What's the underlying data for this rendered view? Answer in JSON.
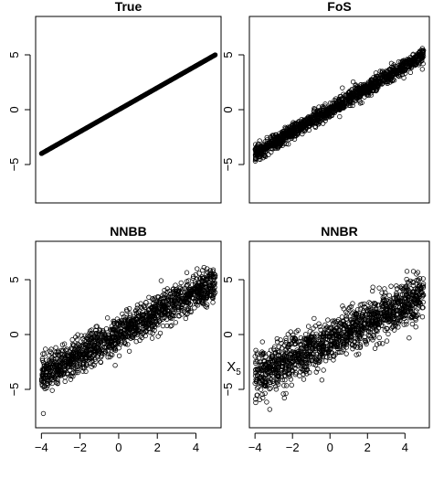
{
  "figure": {
    "shared_xlabel": "X",
    "shared_xlabel_subscript": "5"
  },
  "chart_data": [
    {
      "type": "scatter",
      "title": "True",
      "xlim": [
        -4.3,
        5.3
      ],
      "ylim": [
        -8.5,
        8.5
      ],
      "xticks": [
        -4,
        -2,
        0,
        2,
        4
      ],
      "yticks": [
        -5,
        0,
        5
      ],
      "show_xticks": false,
      "show_yticks": true,
      "marker": "filled-dense-line",
      "relation": {
        "slope": 1.0,
        "intercept": 0.0,
        "noise_sd": 0.0
      },
      "x_range": [
        -4,
        5
      ],
      "n_points": 900
    },
    {
      "type": "scatter",
      "title": "FoS",
      "xlim": [
        -4.3,
        5.3
      ],
      "ylim": [
        -8.5,
        8.5
      ],
      "xticks": [
        -4,
        -2,
        0,
        2,
        4
      ],
      "yticks": [
        -5,
        0,
        5
      ],
      "show_xticks": false,
      "show_yticks": true,
      "marker": "open-circle",
      "relation": {
        "slope": 1.0,
        "intercept": 0.0,
        "noise_sd": 0.35
      },
      "x_range": [
        -4,
        5
      ],
      "n_points": 1400
    },
    {
      "type": "scatter",
      "title": "NNBB",
      "xlim": [
        -4.3,
        5.3
      ],
      "ylim": [
        -8.5,
        8.5
      ],
      "xticks": [
        -4,
        -2,
        0,
        2,
        4
      ],
      "yticks": [
        -5,
        0,
        5
      ],
      "show_xticks": true,
      "show_yticks": true,
      "marker": "open-circle",
      "relation": {
        "slope": 0.95,
        "intercept": 0.05,
        "noise_sd": 0.8
      },
      "x_range": [
        -4,
        5
      ],
      "n_points": 1400,
      "outliers": [
        {
          "x": -3.9,
          "y": -7.2
        }
      ]
    },
    {
      "type": "scatter",
      "title": "NNBR",
      "xlim": [
        -4.3,
        5.3
      ],
      "ylim": [
        -8.5,
        8.5
      ],
      "xticks": [
        -4,
        -2,
        0,
        2,
        4
      ],
      "yticks": [
        -5,
        0,
        5
      ],
      "show_xticks": true,
      "show_yticks": true,
      "marker": "open-circle",
      "relation": {
        "slope": 0.8,
        "intercept": -0.5,
        "noise_sd": 1.05
      },
      "x_range": [
        -4,
        5
      ],
      "n_points": 1400
    }
  ]
}
